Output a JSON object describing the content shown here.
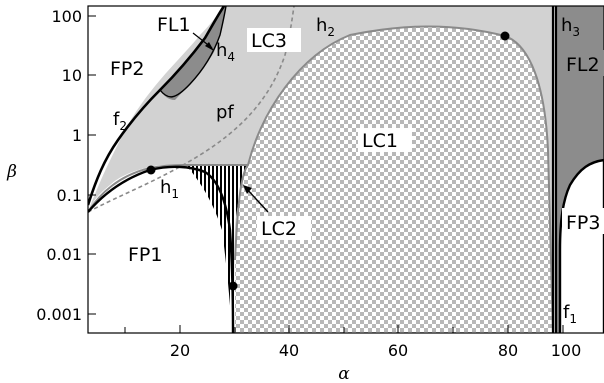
{
  "axes": {
    "xlabel": "α",
    "ylabel": "β",
    "x_ticks": [
      "20",
      "40",
      "60",
      "80",
      "100"
    ],
    "y_ticks": [
      "100",
      "10",
      "1",
      "0.1",
      "0.01",
      "0.001"
    ]
  },
  "regions": {
    "fp1": "FP1",
    "fp2": "FP2",
    "fp3": "FP3",
    "fl1": "FL1",
    "fl2": "FL2",
    "lc1": "LC1",
    "lc2": "LC2",
    "lc3": "LC3"
  },
  "curves": {
    "h1": {
      "base": "h",
      "sub": "1"
    },
    "h2": {
      "base": "h",
      "sub": "2"
    },
    "h3": {
      "base": "h",
      "sub": "3"
    },
    "h4": {
      "base": "h",
      "sub": "4"
    },
    "f1": {
      "base": "f",
      "sub": "1"
    },
    "f2": {
      "base": "f",
      "sub": "2"
    },
    "pf": "pf"
  },
  "colors": {
    "lc3_fill": "#d2d2d2",
    "fl1_fill": "#8c8c8c",
    "fl2_fill": "#8c8c8c",
    "checker_light": "#ffffff",
    "checker_dark": "#b8b8b8",
    "boundary_gray": "#8a8a8a",
    "boundary_black": "#000000"
  }
}
